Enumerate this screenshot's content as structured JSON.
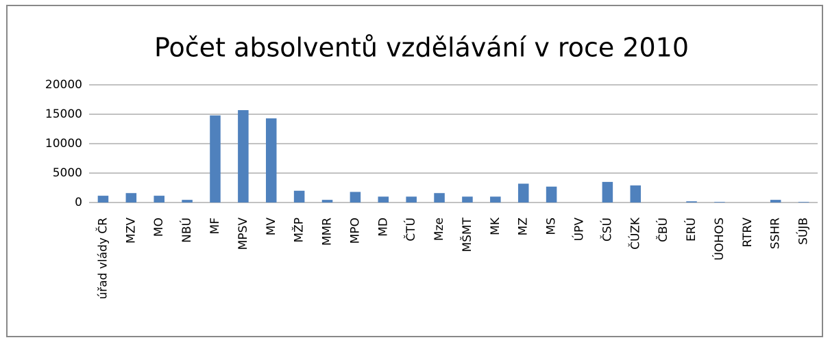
{
  "chart_data": {
    "type": "bar",
    "title": "Počet absolventů vzdělávání v roce 2010",
    "categories": [
      "úřad vlády ČR",
      "MZV",
      "MO",
      "NBÚ",
      "MF",
      "MPSV",
      "MV",
      "MŽP",
      "MMR",
      "MPO",
      "MD",
      "ČTÚ",
      "Mze",
      "MŠMT",
      "MK",
      "MZ",
      "MS",
      "ÚPV",
      "ČSÚ",
      "ČÚZK",
      "ČBÚ",
      "ERÚ",
      "ÚOHOS",
      "RTRV",
      "SSHR",
      "SÚJB"
    ],
    "values": [
      1150,
      1600,
      1150,
      450,
      14800,
      15700,
      14300,
      2000,
      450,
      1800,
      1000,
      1000,
      1600,
      1000,
      1000,
      3200,
      2700,
      0,
      3500,
      2900,
      0,
      200,
      100,
      0,
      450,
      100
    ],
    "color": "#4f81bd",
    "ylim": [
      0,
      20000
    ],
    "yticks": [
      0,
      5000,
      10000,
      15000,
      20000
    ],
    "grid": true
  }
}
